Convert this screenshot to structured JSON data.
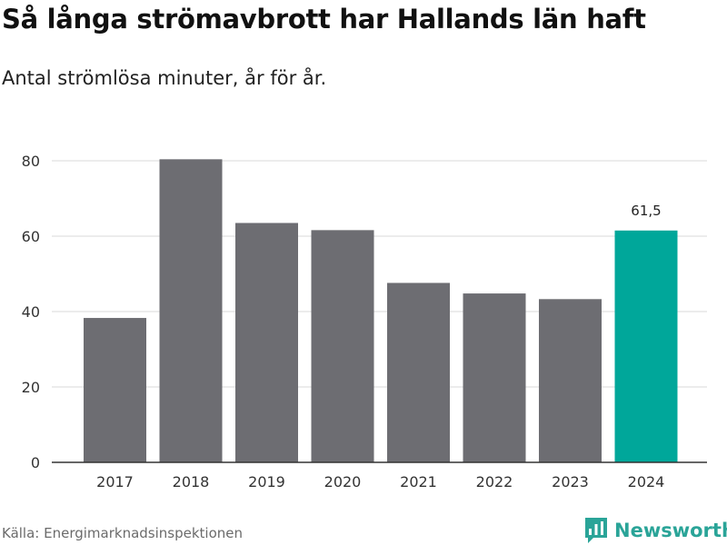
{
  "header": {
    "title": "Så långa strömavbrott har Hallands län haft",
    "subtitle": "Antal strömlösa minuter, år för år."
  },
  "footer": {
    "source": "Källa: Energimarknadsinspektionen",
    "brand": "Newsworthy",
    "brand_icon": "newsworthy-logo-icon"
  },
  "colors": {
    "bar": "#6d6d72",
    "highlight": "#00a79a",
    "grid": "#d9d9d9",
    "axis": "#333333",
    "brand": "#2aa498"
  },
  "chart_data": {
    "type": "bar",
    "title": "Så långa strömavbrott har Hallands län haft",
    "subtitle": "Antal strömlösa minuter, år för år.",
    "xlabel": "",
    "ylabel": "",
    "categories": [
      "2017",
      "2018",
      "2019",
      "2020",
      "2021",
      "2022",
      "2023",
      "2024"
    ],
    "values": [
      38.3,
      80.4,
      63.5,
      61.6,
      47.6,
      44.8,
      43.3,
      61.5
    ],
    "highlight_index": 7,
    "data_labels": [
      {
        "index": 7,
        "text": "61,5"
      }
    ],
    "yticks": [
      0,
      20,
      40,
      60,
      80
    ],
    "ylim": [
      0,
      88
    ],
    "grid": true,
    "legend": "none"
  }
}
